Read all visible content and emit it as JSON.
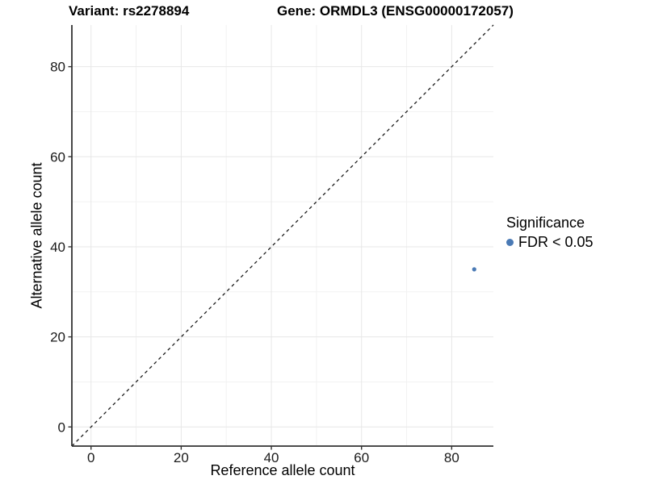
{
  "chart_data": {
    "type": "scatter",
    "title_variant": "Variant: rs2278894",
    "title_gene": "Gene: ORMDL3 (ENSG00000172057)",
    "xlabel": "Reference allele count",
    "ylabel": "Alternative allele count",
    "xlim": [
      0,
      85
    ],
    "ylim": [
      0,
      85
    ],
    "x_ticks": [
      0,
      20,
      40,
      60,
      80
    ],
    "y_ticks": [
      0,
      20,
      40,
      60,
      80
    ],
    "x_minor_ticks": [
      10,
      30,
      50,
      70
    ],
    "y_minor_ticks": [
      10,
      30,
      50,
      70
    ],
    "expansion_frac": 0.05,
    "grid": "major+minor",
    "identity_line": {
      "slope": 1,
      "intercept": 0,
      "style": "dashed",
      "color": "#1a1a1a"
    },
    "series": [
      {
        "name": "FDR < 0.05",
        "color": "#4a7ab5",
        "points": [
          {
            "x": 85,
            "y": 35
          }
        ]
      }
    ],
    "legend": {
      "title": "Significance",
      "position": "right",
      "items": [
        {
          "label": "FDR < 0.05",
          "color": "#4a7ab5"
        }
      ]
    },
    "colors": {
      "point": "#4a7ab5",
      "axis_line": "#333333",
      "tick_mark": "#333333",
      "grid_major": "#e7e7e7",
      "grid_minor": "#f2f2f2",
      "background": "#ffffff"
    }
  }
}
